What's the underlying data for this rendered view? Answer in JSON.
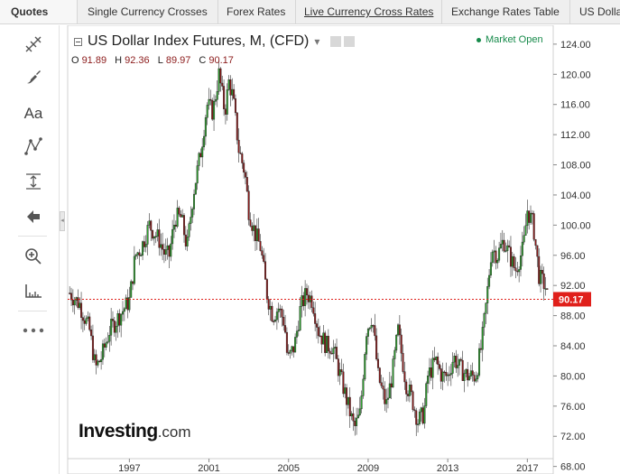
{
  "tabs": [
    {
      "label": "Quotes"
    },
    {
      "label": "Single Currency Crosses"
    },
    {
      "label": "Forex Rates"
    },
    {
      "label": "Live Currency Cross Rates"
    },
    {
      "label": "Exchange Rates Table"
    },
    {
      "label": "US Dolla"
    }
  ],
  "toolbar": {
    "tools": [
      "crosshair-icon",
      "brush-icon",
      "text-tool-icon",
      "pattern-icon",
      "measure-icon",
      "back-arrow-icon",
      "zoom-in-icon",
      "ruler-icon",
      "more-icon"
    ],
    "text_tool_label": "Aa"
  },
  "header": {
    "title": "US Dollar Index Futures, M, (CFD)",
    "dropdown": "▾"
  },
  "ohlc": {
    "o_label": "O",
    "o": "91.89",
    "h_label": "H",
    "h": "92.36",
    "l_label": "L",
    "l": "89.97",
    "c_label": "C",
    "c": "90.17"
  },
  "status": {
    "market": "Market Open",
    "color": "#168a4a"
  },
  "logo": {
    "main": "Investing",
    "suffix": ".com"
  },
  "colors": {
    "up": "#2ea02e",
    "down": "#8b1a1a",
    "last_price": "#e0201b"
  },
  "chart_data": {
    "type": "candlestick",
    "title": "US Dollar Index Futures, M, (CFD)",
    "ylim": [
      67.0,
      126.5
    ],
    "xlim": [
      1993.9,
      2018.3
    ],
    "y_ticks": [
      "68.00",
      "72.00",
      "76.00",
      "80.00",
      "84.00",
      "88.00",
      "92.00",
      "96.00",
      "100.00",
      "104.00",
      "108.00",
      "112.00",
      "116.00",
      "120.00",
      "124.00"
    ],
    "x_ticks": [
      "1997",
      "2001",
      "2005",
      "2009",
      "2013",
      "2017"
    ],
    "x_tick_values": [
      1997,
      2001,
      2005,
      2009,
      2013,
      2017
    ],
    "last_price": 90.17,
    "last_price_label": "90.17",
    "path": [
      [
        1994.0,
        91.0
      ],
      [
        1994.5,
        89.5
      ],
      [
        1995.0,
        86.0
      ],
      [
        1995.3,
        81.0
      ],
      [
        1995.6,
        82.5
      ],
      [
        1996.0,
        86.0
      ],
      [
        1996.5,
        88.0
      ],
      [
        1997.0,
        90.0
      ],
      [
        1997.3,
        96.0
      ],
      [
        1997.6,
        97.0
      ],
      [
        1998.0,
        100.0
      ],
      [
        1998.5,
        98.0
      ],
      [
        1998.8,
        96.0
      ],
      [
        1999.0,
        96.0
      ],
      [
        1999.3,
        101.0
      ],
      [
        1999.6,
        101.0
      ],
      [
        1999.9,
        97.0
      ],
      [
        2000.2,
        104.0
      ],
      [
        2000.6,
        110.0
      ],
      [
        2000.9,
        116.0
      ],
      [
        2001.2,
        115.0
      ],
      [
        2001.5,
        120.0
      ],
      [
        2001.8,
        115.0
      ],
      [
        2002.0,
        119.0
      ],
      [
        2002.2,
        117.0
      ],
      [
        2002.5,
        110.0
      ],
      [
        2002.8,
        107.0
      ],
      [
        2003.0,
        102.0
      ],
      [
        2003.3,
        99.0
      ],
      [
        2003.6,
        97.0
      ],
      [
        2003.9,
        91.0
      ],
      [
        2004.2,
        88.0
      ],
      [
        2004.5,
        89.0
      ],
      [
        2004.8,
        87.0
      ],
      [
        2004.95,
        82.0
      ],
      [
        2005.3,
        84.0
      ],
      [
        2005.6,
        89.0
      ],
      [
        2005.9,
        91.0
      ],
      [
        2006.2,
        90.0
      ],
      [
        2006.5,
        86.0
      ],
      [
        2006.9,
        84.0
      ],
      [
        2007.2,
        84.0
      ],
      [
        2007.5,
        81.0
      ],
      [
        2007.8,
        78.0
      ],
      [
        2008.0,
        76.0
      ],
      [
        2008.3,
        73.0
      ],
      [
        2008.6,
        75.0
      ],
      [
        2008.9,
        86.0
      ],
      [
        2009.2,
        88.0
      ],
      [
        2009.5,
        80.0
      ],
      [
        2009.9,
        76.0
      ],
      [
        2010.2,
        80.0
      ],
      [
        2010.5,
        86.0
      ],
      [
        2010.9,
        79.0
      ],
      [
        2011.2,
        77.0
      ],
      [
        2011.5,
        74.0
      ],
      [
        2011.8,
        75.0
      ],
      [
        2012.0,
        80.0
      ],
      [
        2012.4,
        82.0
      ],
      [
        2012.7,
        80.0
      ],
      [
        2013.0,
        80.0
      ],
      [
        2013.3,
        82.5
      ],
      [
        2013.6,
        81.0
      ],
      [
        2014.0,
        80.0
      ],
      [
        2014.4,
        80.0
      ],
      [
        2014.7,
        84.0
      ],
      [
        2014.95,
        90.0
      ],
      [
        2015.2,
        97.0
      ],
      [
        2015.5,
        96.0
      ],
      [
        2015.8,
        98.0
      ],
      [
        2016.1,
        96.0
      ],
      [
        2016.4,
        94.0
      ],
      [
        2016.8,
        97.0
      ],
      [
        2017.0,
        102.0
      ],
      [
        2017.3,
        100.0
      ],
      [
        2017.6,
        93.0
      ],
      [
        2017.9,
        92.0
      ],
      [
        2018.05,
        90.0
      ]
    ]
  }
}
